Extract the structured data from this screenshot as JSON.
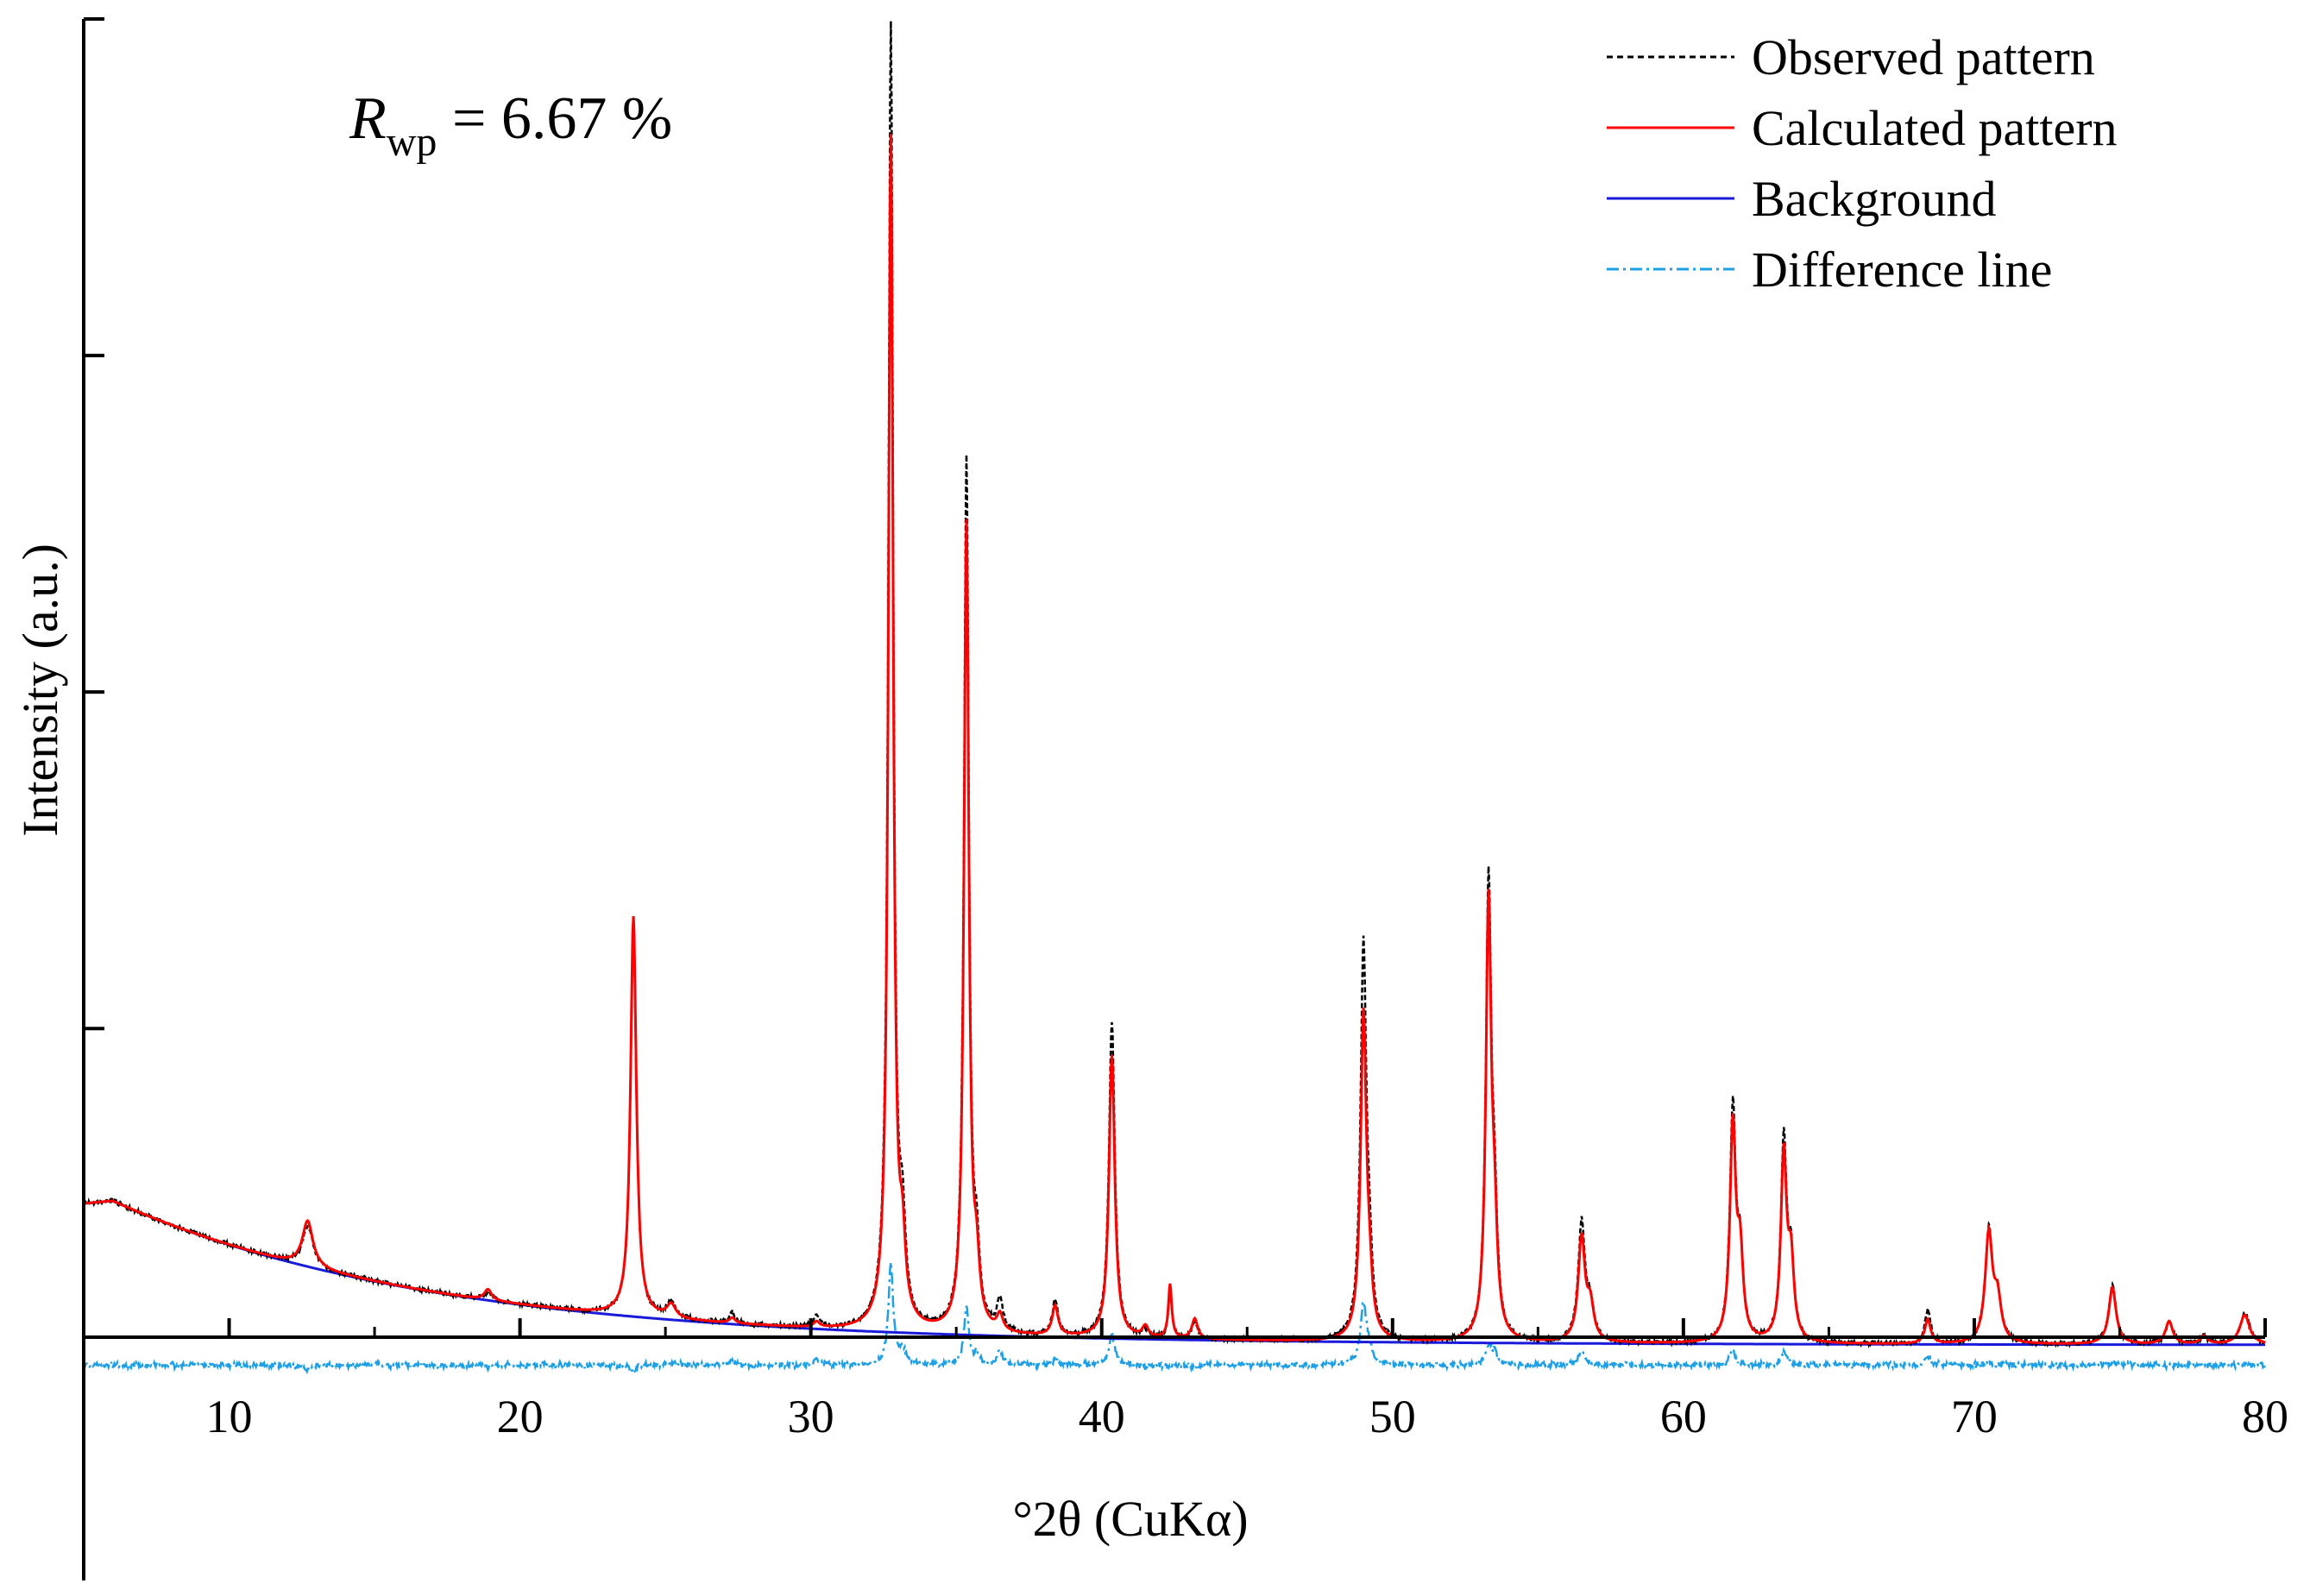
{
  "chart_data": {
    "type": "line",
    "title": "",
    "xlabel": "°2θ (CuKα)",
    "ylabel": "Intensity (a.u.)",
    "xlim": [
      5,
      80
    ],
    "ylim": [
      -0.16,
      1.0
    ],
    "xticks": [
      10,
      20,
      30,
      40,
      50,
      60,
      70,
      80
    ],
    "xtick_labels": [
      "10",
      "20",
      "30",
      "40",
      "50",
      "60",
      "70",
      "80"
    ],
    "yticks": [
      0.25,
      0.5,
      0.75
    ],
    "grid": false,
    "legend_position": "top-right",
    "annotation": {
      "symbol": "R",
      "subscript": "wp",
      "text": " = 6.67 %"
    },
    "background": {
      "name": "Background",
      "color": "#1a1adb",
      "start": 0.12,
      "center": 6.0,
      "peak": 0.122,
      "decay": 11.0,
      "floor": 0.015
    },
    "peaks": [
      {
        "pos": 12.7,
        "calc": 0.034,
        "obs": 0.03,
        "w": 0.22
      },
      {
        "pos": 18.9,
        "calc": 0.008,
        "obs": 0.006,
        "w": 0.15
      },
      {
        "pos": 23.9,
        "calc": 0.297,
        "obs": 0.292,
        "w": 0.12
      },
      {
        "pos": 25.2,
        "calc": 0.01,
        "obs": 0.012,
        "w": 0.18
      },
      {
        "pos": 27.3,
        "calc": 0.004,
        "obs": 0.008,
        "w": 0.12
      },
      {
        "pos": 30.2,
        "calc": 0.004,
        "obs": 0.008,
        "w": 0.12
      },
      {
        "pos": 32.75,
        "calc": 0.885,
        "obs": 0.968,
        "w": 0.1
      },
      {
        "pos": 33.15,
        "calc": 0.05,
        "obs": 0.062,
        "w": 0.12
      },
      {
        "pos": 35.35,
        "calc": 0.6,
        "obs": 0.647,
        "w": 0.1
      },
      {
        "pos": 35.7,
        "calc": 0.04,
        "obs": 0.048,
        "w": 0.12
      },
      {
        "pos": 36.5,
        "calc": 0.012,
        "obs": 0.024,
        "w": 0.12
      },
      {
        "pos": 38.4,
        "calc": 0.022,
        "obs": 0.026,
        "w": 0.12
      },
      {
        "pos": 40.35,
        "calc": 0.21,
        "obs": 0.235,
        "w": 0.12
      },
      {
        "pos": 41.5,
        "calc": 0.008,
        "obs": 0.006,
        "w": 0.12
      },
      {
        "pos": 42.35,
        "calc": 0.04,
        "obs": 0.038,
        "w": 0.07
      },
      {
        "pos": 43.2,
        "calc": 0.015,
        "obs": 0.012,
        "w": 0.12
      },
      {
        "pos": 49.0,
        "calc": 0.24,
        "obs": 0.29,
        "w": 0.12
      },
      {
        "pos": 49.2,
        "calc": 0.03,
        "obs": 0.04,
        "w": 0.12
      },
      {
        "pos": 53.3,
        "calc": 0.318,
        "obs": 0.333,
        "w": 0.11
      },
      {
        "pos": 53.5,
        "calc": 0.07,
        "obs": 0.08,
        "w": 0.12
      },
      {
        "pos": 56.5,
        "calc": 0.077,
        "obs": 0.088,
        "w": 0.14
      },
      {
        "pos": 56.8,
        "calc": 0.025,
        "obs": 0.025,
        "w": 0.14
      },
      {
        "pos": 61.7,
        "calc": 0.159,
        "obs": 0.171,
        "w": 0.12
      },
      {
        "pos": 61.95,
        "calc": 0.06,
        "obs": 0.06,
        "w": 0.12
      },
      {
        "pos": 63.45,
        "calc": 0.138,
        "obs": 0.148,
        "w": 0.12
      },
      {
        "pos": 63.7,
        "calc": 0.055,
        "obs": 0.055,
        "w": 0.12
      },
      {
        "pos": 68.4,
        "calc": 0.018,
        "obs": 0.025,
        "w": 0.12
      },
      {
        "pos": 70.5,
        "calc": 0.08,
        "obs": 0.082,
        "w": 0.15
      },
      {
        "pos": 70.8,
        "calc": 0.03,
        "obs": 0.03,
        "w": 0.15
      },
      {
        "pos": 74.75,
        "calc": 0.042,
        "obs": 0.044,
        "w": 0.15
      },
      {
        "pos": 76.7,
        "calc": 0.017,
        "obs": 0.016,
        "w": 0.15
      },
      {
        "pos": 77.9,
        "calc": 0.006,
        "obs": 0.006,
        "w": 0.15
      },
      {
        "pos": 79.3,
        "calc": 0.022,
        "obs": 0.023,
        "w": 0.2
      }
    ],
    "difference_offset": 0.0,
    "series": [
      {
        "name": "Observed pattern",
        "color": "#000000",
        "style": "dashed"
      },
      {
        "name": "Calculated pattern",
        "color": "#ff0000",
        "style": "solid"
      },
      {
        "name": "Background",
        "color": "#1a1adb",
        "style": "solid"
      },
      {
        "name": "Difference line",
        "color": "#1ea0e6",
        "style": "dash-dot"
      }
    ]
  }
}
